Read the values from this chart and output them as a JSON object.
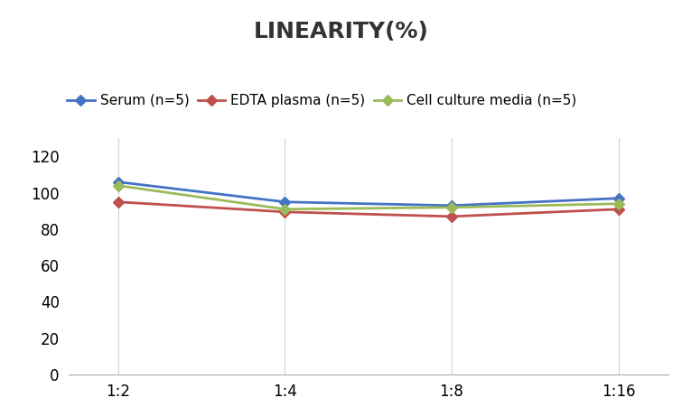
{
  "title": "LINEARITY(%)",
  "x_labels": [
    "1:2",
    "1:4",
    "1:8",
    "1:16"
  ],
  "x_positions": [
    0,
    1,
    2,
    3
  ],
  "series": [
    {
      "label": "Serum (n=5)",
      "values": [
        106,
        95,
        93,
        97
      ],
      "color": "#4472C4",
      "marker": "D",
      "markersize": 6,
      "linewidth": 2.0
    },
    {
      "label": "EDTA plasma (n=5)",
      "values": [
        95,
        89.5,
        87,
        91
      ],
      "color": "#C0504D",
      "marker": "D",
      "markersize": 6,
      "linewidth": 2.0
    },
    {
      "label": "Cell culture media (n=5)",
      "values": [
        104,
        91,
        92,
        94
      ],
      "color": "#9BBB59",
      "marker": "D",
      "markersize": 6,
      "linewidth": 2.0
    }
  ],
  "ylim": [
    0,
    130
  ],
  "yticks": [
    0,
    20,
    40,
    60,
    80,
    100,
    120
  ],
  "background_color": "#FFFFFF",
  "grid_color": "#D3D3D3",
  "title_fontsize": 18,
  "legend_fontsize": 11,
  "tick_fontsize": 12
}
